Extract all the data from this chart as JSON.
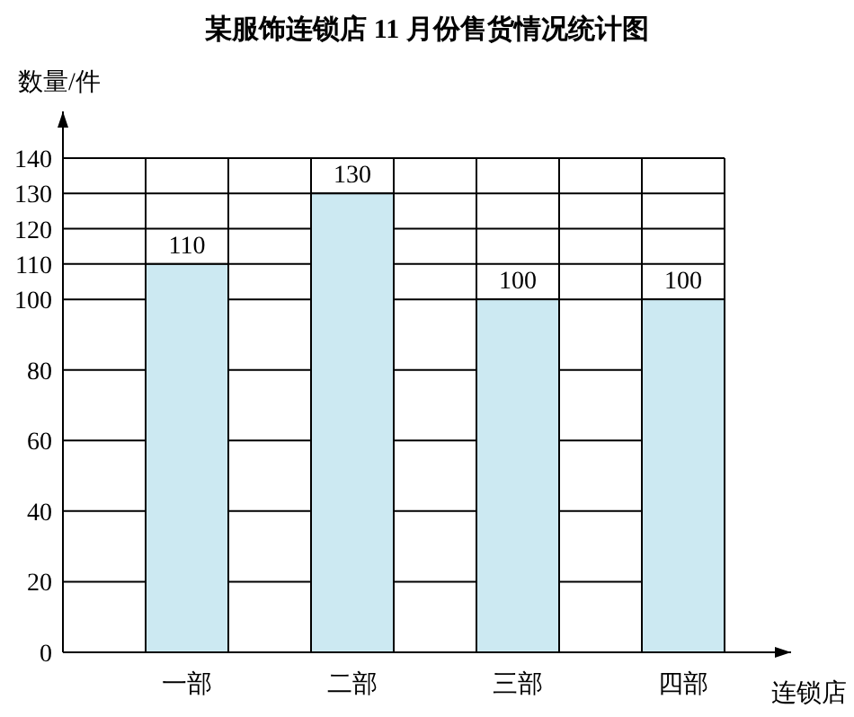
{
  "chart_data": {
    "type": "bar",
    "title": "某服饰连锁店 11 月份售货情况统计图",
    "xlabel": "连锁店",
    "ylabel": "数量/件",
    "categories": [
      "一部",
      "二部",
      "三部",
      "四部"
    ],
    "values": [
      110,
      130,
      100,
      100
    ],
    "color": "#cce9f2",
    "ylim": [
      0,
      140
    ],
    "yticks": [
      0,
      20,
      40,
      60,
      80,
      100,
      110,
      120,
      130,
      140
    ],
    "grid": true,
    "data_labels": true
  }
}
